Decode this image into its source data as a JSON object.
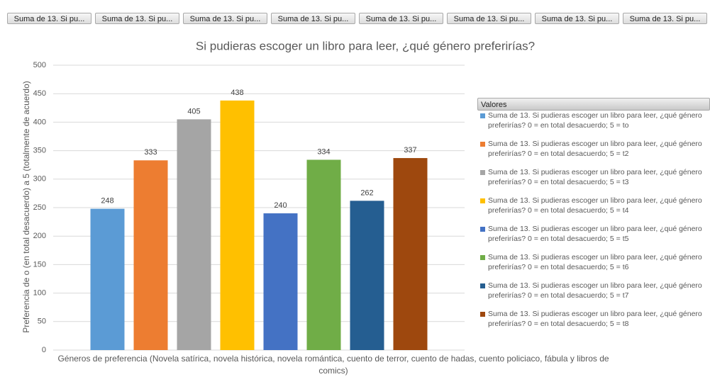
{
  "field_buttons": [
    "Suma de 13. Si pu...",
    "Suma de 13. Si pu...",
    "Suma de 13. Si pu...",
    "Suma de 13. Si pu...",
    "Suma de 13. Si pu...",
    "Suma de 13. Si pu...",
    "Suma de 13. Si pu...",
    "Suma de 13. Si pu..."
  ],
  "chart_data": {
    "type": "bar",
    "title": "Si pudieras escoger un libro para leer, ¿qué género preferirías?",
    "y_label": "Preferencia de o (en total desacuerdo) a 5 (totalmente de acuerdo)",
    "x_label": "Géneros de preferencia (Novela satírica, novela histórica, novela romántica, cuento de terror, cuento de hadas, cuento policiaco, fábula y libros de comics)",
    "legend_title": "Valores",
    "categories": [
      null
    ],
    "series": [
      {
        "name": "Suma de 13. Si pudieras escoger un libro para leer, ¿qué género preferirías? 0 = en total desacuerdo; 5 = to",
        "color": "#5b9bd5",
        "values": [
          248
        ]
      },
      {
        "name": "Suma de 13. Si pudieras escoger un libro para leer, ¿qué género preferirías? 0 = en total desacuerdo; 5 = t2",
        "color": "#ed7d31",
        "values": [
          333
        ]
      },
      {
        "name": "Suma de 13. Si pudieras escoger un libro para leer, ¿qué género preferirías? 0 = en total desacuerdo; 5 = t3",
        "color": "#a5a5a5",
        "values": [
          405
        ]
      },
      {
        "name": "Suma de 13. Si pudieras escoger un libro para leer, ¿qué género preferirías? 0 = en total desacuerdo; 5 = t4",
        "color": "#ffc000",
        "values": [
          438
        ]
      },
      {
        "name": "Suma de 13. Si pudieras escoger un libro para leer, ¿qué género preferirías? 0 = en total desacuerdo; 5 = t5",
        "color": "#4472c4",
        "values": [
          240
        ]
      },
      {
        "name": "Suma de 13. Si pudieras escoger un libro para leer, ¿qué género preferirías? 0 = en total desacuerdo; 5 = t6",
        "color": "#70ad47",
        "values": [
          334
        ]
      },
      {
        "name": "Suma de 13. Si pudieras escoger un libro para leer, ¿qué género preferirías? 0 = en total desacuerdo; 5 = t7",
        "color": "#255e91",
        "values": [
          262
        ]
      },
      {
        "name": "Suma de 13. Si pudieras escoger un libro para leer, ¿qué género preferirías? 0 = en total desacuerdo; 5 = t8",
        "color": "#9e480e",
        "values": [
          337
        ]
      }
    ],
    "ylim": [
      0,
      500
    ],
    "yticks": [
      0,
      50,
      100,
      150,
      200,
      250,
      300,
      350,
      400,
      450,
      500
    ],
    "grid": true,
    "legend": "right"
  }
}
